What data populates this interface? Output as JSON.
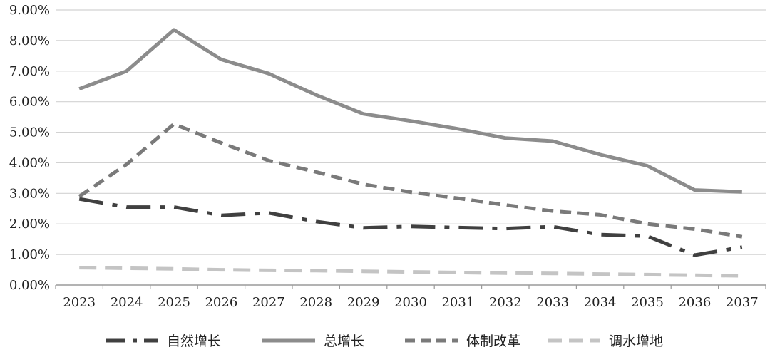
{
  "chart_data": {
    "type": "line",
    "title": "",
    "xlabel": "",
    "ylabel": "",
    "categories": [
      "2023",
      "2024",
      "2025",
      "2026",
      "2027",
      "2028",
      "2029",
      "2030",
      "2031",
      "2032",
      "2033",
      "2034",
      "2035",
      "2036",
      "2037"
    ],
    "ylim": [
      0,
      9
    ],
    "y_ticks": [
      0,
      1,
      2,
      3,
      4,
      5,
      6,
      7,
      8,
      9
    ],
    "y_tick_labels": [
      "0.00%",
      "1.00%",
      "2.00%",
      "3.00%",
      "4.00%",
      "5.00%",
      "6.00%",
      "7.00%",
      "8.00%",
      "9.00%"
    ],
    "grid": "horizontal",
    "legend_position": "bottom",
    "series": [
      {
        "name": "自然增长",
        "color": "#404040",
        "style": "long-dash-dot",
        "values": [
          2.82,
          2.55,
          2.55,
          2.28,
          2.36,
          2.08,
          1.87,
          1.92,
          1.88,
          1.85,
          1.91,
          1.65,
          1.6,
          0.98,
          1.24
        ]
      },
      {
        "name": "总增长",
        "color": "#8c8c8c",
        "style": "solid",
        "values": [
          6.42,
          7.0,
          8.35,
          7.38,
          6.92,
          6.22,
          5.6,
          5.37,
          5.11,
          4.81,
          4.71,
          4.27,
          3.9,
          3.11,
          3.05
        ]
      },
      {
        "name": "体制改革",
        "color": "#7a7a7a",
        "style": "dash",
        "values": [
          2.9,
          3.95,
          5.27,
          4.65,
          4.07,
          3.7,
          3.3,
          3.04,
          2.84,
          2.62,
          2.42,
          2.3,
          2.0,
          1.83,
          1.58
        ]
      },
      {
        "name": "调水增地",
        "color": "#c4c4c4",
        "style": "long-dash",
        "values": [
          0.57,
          0.55,
          0.53,
          0.5,
          0.48,
          0.47,
          0.45,
          0.43,
          0.41,
          0.39,
          0.38,
          0.36,
          0.34,
          0.32,
          0.3
        ]
      }
    ]
  }
}
